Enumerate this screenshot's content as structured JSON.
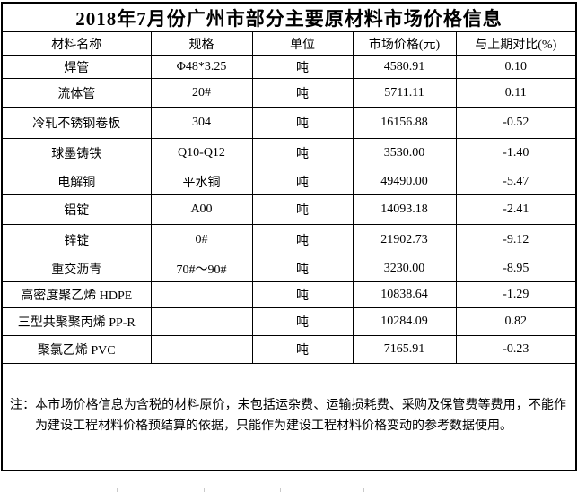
{
  "title": "2018年7月份广州市部分主要原材料市场价格信息",
  "table": {
    "columns": [
      "材料名称",
      "规格",
      "单位",
      "市场价格(元)",
      "与上期对比(%)"
    ],
    "rows": [
      {
        "name": "焊管",
        "spec": "Φ48*3.25",
        "unit": "吨",
        "price": "4580.91",
        "change": "0.10"
      },
      {
        "name": "流体管",
        "spec": "20#",
        "unit": "吨",
        "price": "5711.11",
        "change": "0.11"
      },
      {
        "name": "冷轧不锈钢卷板",
        "spec": "304",
        "unit": "吨",
        "price": "16156.88",
        "change": "-0.52"
      },
      {
        "name": "球墨铸铁",
        "spec": "Q10-Q12",
        "unit": "吨",
        "price": "3530.00",
        "change": "-1.40"
      },
      {
        "name": "电解铜",
        "spec": "平水铜",
        "unit": "吨",
        "price": "49490.00",
        "change": "-5.47"
      },
      {
        "name": "铝锭",
        "spec": "A00",
        "unit": "吨",
        "price": "14093.18",
        "change": "-2.41"
      },
      {
        "name": "锌锭",
        "spec": "0#",
        "unit": "吨",
        "price": "21902.73",
        "change": "-9.12"
      },
      {
        "name": "重交沥青",
        "spec": "70#～90#",
        "unit": "吨",
        "price": "3230.00",
        "change": "-8.95"
      },
      {
        "name": "高密度聚乙烯 HDPE",
        "spec": "",
        "unit": "吨",
        "price": "10838.64",
        "change": "-1.29"
      },
      {
        "name": "三型共聚聚丙烯 PP-R",
        "spec": "",
        "unit": "吨",
        "price": "10284.09",
        "change": "0.82"
      },
      {
        "name": "聚氯乙烯 PVC",
        "spec": "",
        "unit": "吨",
        "price": "7165.91",
        "change": "-0.23"
      }
    ]
  },
  "note": "注：本市场价格信息为含税的材料原价，未包括运杂费、运输损耗费、采购及保管费等费用，不能作为建设工程材料价格预结算的依据，只能作为建设工程材料价格变动的参考数据使用。",
  "colors": {
    "border": "#000000",
    "text": "#000000",
    "background": "#ffffff"
  }
}
